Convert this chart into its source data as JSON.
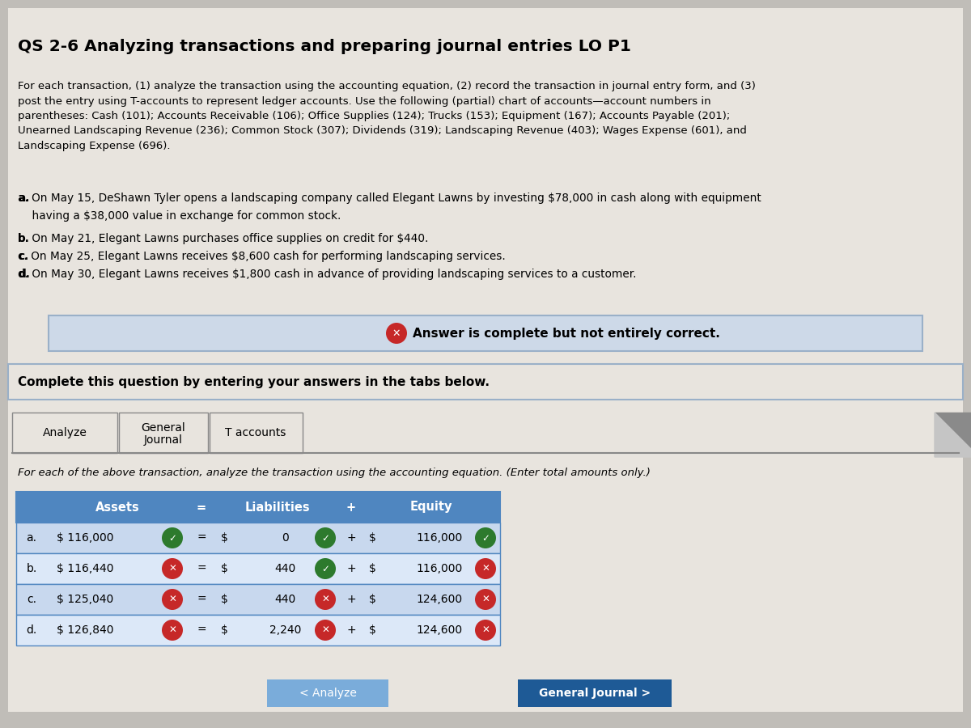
{
  "title": "QS 2-6 Analyzing transactions and preparing journal entries LO P1",
  "bg_color": "#c0bdb8",
  "intro_text": "For each transaction, (1) analyze the transaction using the accounting equation, (2) record the transaction in journal entry form, and (3)\npost the entry using T-accounts to represent ledger accounts. Use the following (partial) chart of accounts—account numbers in\nparentheses: Cash (101); Accounts Receivable (106); Office Supplies (124); Trucks (153); Equipment (167); Accounts Payable (201);\nUnearned Landscaping Revenue (236); Common Stock (307); Dividends (319); Landscaping Revenue (403); Wages Expense (601), and\nLandscaping Expense (696).",
  "trans_a_line1": "a. On May 15, DeShawn Tyler opens a landscaping company called Elegant Lawns by investing $78,000 in cash along with equipment",
  "trans_a_line2": "    having a $38,000 value in exchange for common stock.",
  "trans_b": "b. On May 21, Elegant Lawns purchases office supplies on credit for $440.",
  "trans_c": "c. On May 25, Elegant Lawns receives $8,600 cash for performing landscaping services.",
  "trans_d": "d. On May 30, Elegant Lawns receives $1,800 cash in advance of providing landscaping services to a customer.",
  "answer_text": "Answer is complete but not entirely correct.",
  "complete_text": "Complete this question by entering your answers in the tabs below.",
  "tab1": "Analyze",
  "tab2_line1": "General",
  "tab2_line2": "Journal",
  "tab3": "T accounts",
  "instruction": "For each of the above transaction, analyze the transaction using the accounting equation. (Enter total amounts only.)",
  "nav_left": "< Analyze",
  "nav_right": "General Journal >",
  "white_area_bg": "#e8e4de",
  "answer_bg": "#cdd9e8",
  "answer_border": "#9ab0c8",
  "complete_bg": "#e8e4de",
  "complete_border": "#9ab0c8",
  "tab_bg": "#e8e4de",
  "tab_border": "#888888",
  "header_bg": "#4f86c0",
  "header_text_color": "#ffffff",
  "row_bg_odd": "#c8d8ee",
  "row_bg_even": "#dce8f8",
  "table_border": "#4f86c0",
  "check_color": "#2d7a2d",
  "cross_color": "#c62828",
  "nav_left_bg": "#7aacda",
  "nav_right_bg": "#1e5a96",
  "folded_dark": "#8a8a8a",
  "folded_light": "#c5c5c5"
}
